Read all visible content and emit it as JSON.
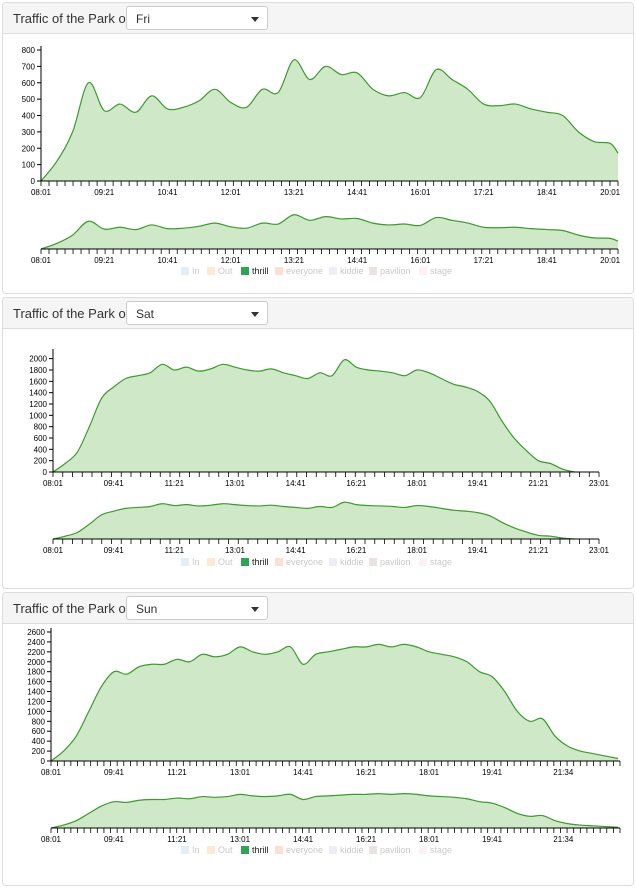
{
  "colors": {
    "area_fill": "#cfe9c8",
    "area_line": "#3c9a2e"
  },
  "panels": [
    {
      "title": "Traffic of the Park on",
      "selected_day": "Fri",
      "chart_data": {
        "type": "area",
        "x": [
          "08:01",
          "08:21",
          "08:41",
          "09:01",
          "09:21",
          "09:41",
          "10:01",
          "10:21",
          "10:41",
          "11:01",
          "11:21",
          "11:41",
          "12:01",
          "12:21",
          "12:41",
          "13:01",
          "13:21",
          "13:41",
          "14:01",
          "14:21",
          "14:41",
          "15:01",
          "15:21",
          "15:41",
          "16:01",
          "16:21",
          "16:41",
          "17:01",
          "17:21",
          "17:41",
          "18:01",
          "18:21",
          "18:41",
          "19:01",
          "19:21",
          "19:41",
          "20:01",
          "20:11"
        ],
        "series": [
          {
            "values": [
              0,
              120,
              300,
              600,
              430,
              470,
              420,
              520,
              440,
              450,
              490,
              560,
              480,
              450,
              560,
              540,
              740,
              620,
              700,
              650,
              660,
              560,
              520,
              540,
              510,
              680,
              620,
              560,
              470,
              460,
              470,
              440,
              420,
              400,
              300,
              240,
              230,
              170
            ]
          }
        ],
        "ylim": [
          0,
          800
        ],
        "yticks": [
          0,
          100,
          200,
          300,
          400,
          500,
          600,
          700,
          800
        ],
        "xtick_labels": [
          "08:01",
          "09:21",
          "10:41",
          "12:01",
          "13:21",
          "14:41",
          "16:01",
          "17:21",
          "18:41",
          "20:01"
        ],
        "legend": [
          "In",
          "Out",
          "thrill",
          "everyone",
          "kiddie",
          "pavilion",
          "stage"
        ],
        "legend_colors": [
          "#c6dbef",
          "#fdd0a2",
          "#31a354",
          "#fcbba1",
          "#dadaeb",
          "#d9bfbf",
          "#fde0ef"
        ],
        "active_series": "thrill"
      }
    },
    {
      "title": "Traffic of the Park on",
      "selected_day": "Sat",
      "chart_data": {
        "type": "area",
        "x": [
          "08:01",
          "08:21",
          "08:41",
          "09:01",
          "09:21",
          "09:41",
          "10:01",
          "10:21",
          "10:41",
          "11:01",
          "11:21",
          "11:41",
          "12:01",
          "12:21",
          "12:41",
          "13:01",
          "13:21",
          "13:41",
          "14:01",
          "14:21",
          "14:41",
          "15:01",
          "15:21",
          "15:41",
          "16:01",
          "16:21",
          "16:41",
          "17:01",
          "17:21",
          "17:41",
          "18:01",
          "18:21",
          "18:41",
          "19:01",
          "19:21",
          "19:41",
          "20:01",
          "20:21",
          "20:41",
          "21:01",
          "21:21",
          "21:41",
          "22:01",
          "22:21"
        ],
        "series": [
          {
            "values": [
              0,
              150,
              350,
              800,
              1300,
              1500,
              1650,
              1700,
              1750,
              1900,
              1800,
              1850,
              1780,
              1820,
              1900,
              1850,
              1800,
              1780,
              1820,
              1750,
              1700,
              1650,
              1750,
              1700,
              1980,
              1850,
              1800,
              1780,
              1750,
              1700,
              1800,
              1750,
              1650,
              1550,
              1500,
              1420,
              1250,
              900,
              600,
              380,
              200,
              150,
              50,
              0
            ]
          }
        ],
        "ylim": [
          0,
          2100
        ],
        "yticks": [
          0,
          200,
          400,
          600,
          800,
          1000,
          1200,
          1400,
          1600,
          1800,
          2000
        ],
        "xtick_labels": [
          "08:01",
          "09:41",
          "11:21",
          "13:01",
          "14:41",
          "16:21",
          "18:01",
          "19:41",
          "21:21",
          "23:01"
        ],
        "legend": [
          "In",
          "Out",
          "thrill",
          "everyone",
          "kiddie",
          "pavilion",
          "stage"
        ],
        "legend_colors": [
          "#c6dbef",
          "#fdd0a2",
          "#31a354",
          "#fcbba1",
          "#dadaeb",
          "#d9bfbf",
          "#fde0ef"
        ],
        "active_series": "thrill"
      }
    },
    {
      "title": "Traffic of the Park on",
      "selected_day": "Sun",
      "chart_data": {
        "type": "area",
        "x": [
          "08:01",
          "08:21",
          "08:41",
          "09:01",
          "09:21",
          "09:41",
          "10:01",
          "10:21",
          "10:41",
          "11:01",
          "11:21",
          "11:41",
          "12:01",
          "12:21",
          "12:41",
          "13:01",
          "13:21",
          "13:41",
          "14:01",
          "14:21",
          "14:41",
          "15:01",
          "15:21",
          "15:41",
          "16:01",
          "16:21",
          "16:41",
          "17:01",
          "17:21",
          "17:41",
          "18:01",
          "18:21",
          "18:41",
          "19:01",
          "19:21",
          "19:41",
          "20:01",
          "20:21",
          "20:41",
          "21:01",
          "21:21",
          "21:41",
          "22:01",
          "22:21",
          "22:41",
          "23:01"
        ],
        "series": [
          {
            "values": [
              0,
              200,
              500,
              1000,
              1500,
              1800,
              1750,
              1900,
              1950,
              1950,
              2050,
              2000,
              2150,
              2100,
              2150,
              2300,
              2200,
              2150,
              2200,
              2300,
              1950,
              2150,
              2200,
              2250,
              2300,
              2300,
              2350,
              2300,
              2350,
              2300,
              2200,
              2150,
              2100,
              2000,
              1800,
              1700,
              1400,
              1000,
              800,
              850,
              500,
              300,
              200,
              150,
              100,
              50
            ]
          }
        ],
        "ylim": [
          0,
          2600
        ],
        "yticks": [
          0,
          200,
          400,
          600,
          800,
          1000,
          1200,
          1400,
          1600,
          1800,
          2000,
          2200,
          2400,
          2600
        ],
        "xtick_labels": [
          "08:01",
          "09:41",
          "11:21",
          "13:01",
          "14:41",
          "16:21",
          "18:01",
          "19:41",
          "21:34"
        ],
        "legend": [
          "In",
          "Out",
          "thrill",
          "everyone",
          "kiddie",
          "pavilion",
          "stage"
        ],
        "legend_colors": [
          "#c6dbef",
          "#fdd0a2",
          "#31a354",
          "#fcbba1",
          "#dadaeb",
          "#d9bfbf",
          "#fde0ef"
        ],
        "active_series": "thrill"
      }
    }
  ]
}
